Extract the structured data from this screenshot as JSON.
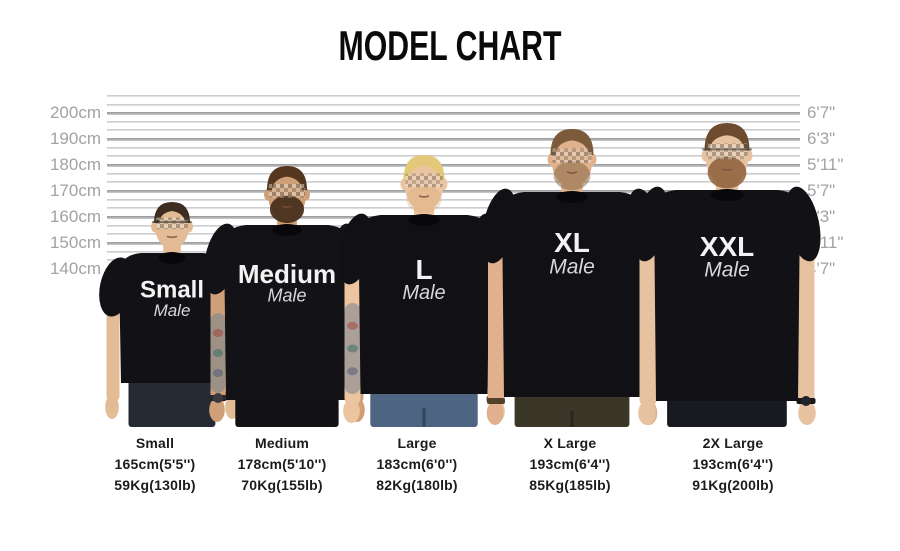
{
  "title": "MODEL CHART",
  "chart_data": {
    "type": "table",
    "title": "MODEL CHART",
    "left_axis": {
      "unit": "cm",
      "ticks": [
        "200cm",
        "190cm",
        "180cm",
        "170cm",
        "160cm",
        "150cm",
        "140cm"
      ]
    },
    "right_axis": {
      "unit": "ft/in",
      "ticks": [
        "6'7\"",
        "6'3\"",
        "5'11\"",
        "5'7\"",
        "5'3\"",
        "4'11\"",
        "4'7\""
      ]
    },
    "rows": [
      {
        "size": "Small",
        "model_height": "165cm(5'5'')",
        "model_weight": "59Kg(130lb)"
      },
      {
        "size": "Medium",
        "model_height": "178cm(5'10'')",
        "model_weight": "70Kg(155lb)"
      },
      {
        "size": "Large",
        "model_height": "183cm(6'0'')",
        "model_weight": "82Kg(180lb)"
      },
      {
        "size": "X Large",
        "model_height": "193cm(6'4'')",
        "model_weight": "85Kg(185lb)"
      },
      {
        "size": "2X Large",
        "model_height": "193cm(6'4'')",
        "model_weight": "91Kg(200lb)"
      }
    ]
  },
  "models": [
    {
      "shirt_label": "Small",
      "shirt_sub": "Male",
      "height_cm": 165,
      "appearance": {
        "skin": "#e3bc96",
        "hair": "#3e2e21",
        "beard": null,
        "beard_opacity": 0,
        "glasses": true,
        "pants": "#262a34",
        "pants_seam": null,
        "tattoos": [],
        "watch": {
          "side": "right",
          "band": "#8a5a2e",
          "face": "#c9932f"
        },
        "shirt": "#111116"
      }
    },
    {
      "shirt_label": "Medium",
      "shirt_sub": "Male",
      "height_cm": 178,
      "appearance": {
        "skin": "#cfa077",
        "hair": "#55371f",
        "beard": "#432c1a",
        "beard_opacity": 0.92,
        "glasses": false,
        "pants": "#121215",
        "pants_seam": null,
        "tattoos": [
          "left",
          "right"
        ],
        "watch": {
          "side": "left",
          "band": "#26262b",
          "face": "#3a3a40"
        },
        "shirt": "#121217"
      }
    },
    {
      "shirt_label": "L",
      "shirt_sub": "Male",
      "height_cm": 183,
      "appearance": {
        "skin": "#ecc49f",
        "hair": "#e2c878",
        "beard": "#d8a878",
        "beard_opacity": 0.35,
        "glasses": false,
        "pants": "#4d6583",
        "pants_seam": "#32475e",
        "tattoos": [
          "left",
          "right"
        ],
        "watch": {
          "side": "right",
          "band": "#7a5a33",
          "face": null
        },
        "shirt": "#101015"
      }
    },
    {
      "shirt_label": "XL",
      "shirt_sub": "Male",
      "height_cm": 193,
      "appearance": {
        "skin": "#e0b18c",
        "hair": "#7b5b3a",
        "beard": "#7e613f",
        "beard_opacity": 0.5,
        "glasses": false,
        "pants": "#3a3628",
        "pants_seam": "#2b271c",
        "tattoos": [],
        "watch": {
          "side": "left",
          "band": "#52422c",
          "face": null
        },
        "shirt": "#101015"
      }
    },
    {
      "shirt_label": "XXL",
      "shirt_sub": "Male",
      "height_cm": 193,
      "appearance": {
        "skin": "#e7c2a0",
        "hair": "#6d4b2e",
        "beard": "#8c5f3a",
        "beard_opacity": 0.85,
        "glasses": true,
        "pants": "#191920",
        "pants_seam": null,
        "tattoos": [],
        "watch": {
          "side": "right",
          "band": "#17171c",
          "face": "#23232a"
        },
        "shirt": "#111116"
      }
    }
  ]
}
